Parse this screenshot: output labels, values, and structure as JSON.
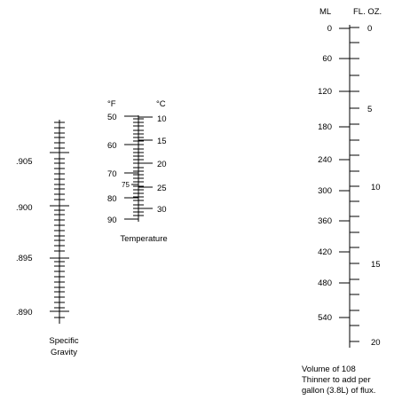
{
  "gravity": {
    "labels": [
      ".905",
      ".900",
      ".895",
      ".890"
    ],
    "caption": [
      "Specific",
      "Gravity"
    ]
  },
  "temperature": {
    "f_header": "°F",
    "c_header": "°C",
    "f_labels": [
      "50",
      "60",
      "70",
      "75",
      "80",
      "90"
    ],
    "c_labels": [
      "10",
      "15",
      "20",
      "25",
      "30"
    ],
    "caption": "Temperature"
  },
  "volume": {
    "ml_header": "ML",
    "floz_header": "FL. OZ.",
    "ml_labels": [
      "0",
      "60",
      "120",
      "180",
      "240",
      "300",
      "360",
      "420",
      "480",
      "540"
    ],
    "floz_labels": [
      "0",
      "5",
      "10",
      "15",
      "20"
    ],
    "caption": [
      "Volume of 108",
      "Thinner to add per",
      "gallon (3.8L) of flux."
    ]
  }
}
